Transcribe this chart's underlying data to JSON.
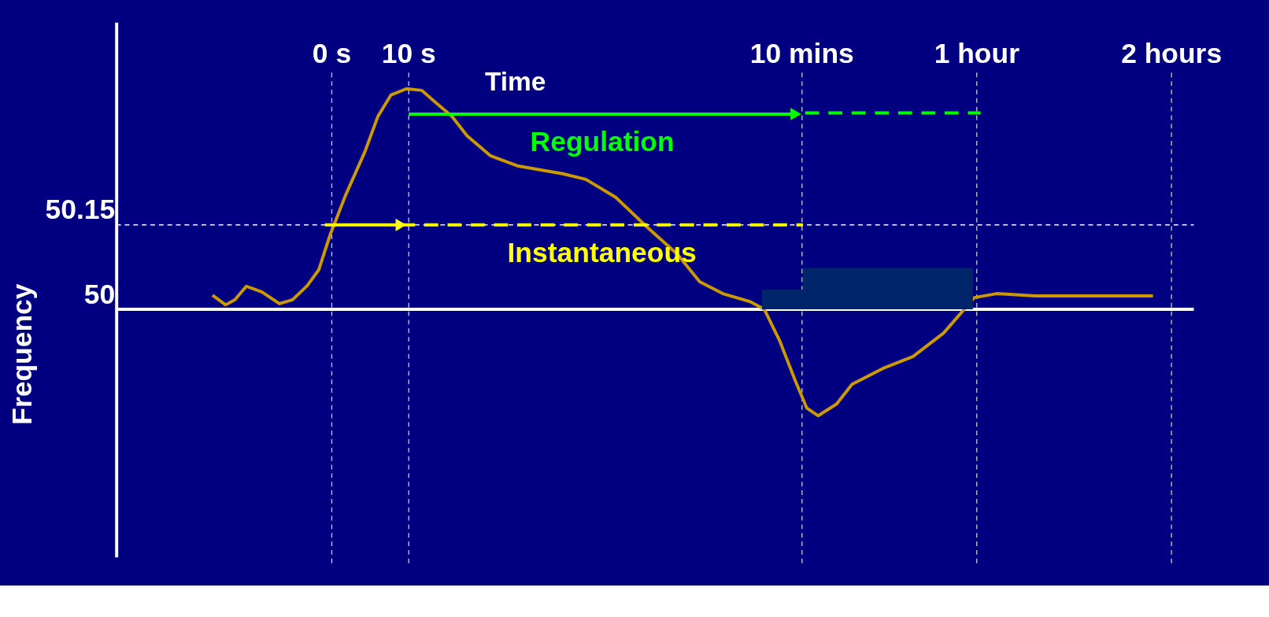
{
  "chart_data": {
    "type": "line",
    "xlabel": "Time",
    "ylabel": "Frequency",
    "xlim": [
      -28,
      112
    ],
    "ylim": [
      49.56,
      50.51
    ],
    "yticks": [
      50,
      50.15
    ],
    "tick_labels": "y",
    "ref_lines": [
      {
        "axis": "y",
        "value": 50.15,
        "color": "#ffffff",
        "line_style": "dashed"
      },
      {
        "axis": "y",
        "value": 50,
        "color": "#ffffff",
        "line_style": "solid"
      },
      {
        "axis": "x",
        "value": 0,
        "label": "0 s",
        "color": "#cccccc",
        "line_style": "dashed"
      },
      {
        "axis": "x",
        "value": 10,
        "label": "10 s",
        "color": "#cccccc",
        "line_style": "dashed"
      },
      {
        "axis": "x",
        "value": 61.1,
        "label": "10 mins",
        "color": "#cccccc",
        "line_style": "dashed"
      },
      {
        "axis": "x",
        "value": 83.8,
        "label": "1 hour",
        "color": "#cccccc",
        "line_style": "dashed"
      },
      {
        "axis": "x",
        "value": 109.1,
        "label": "2 hours",
        "color": "#cccccc",
        "line_style": "dashed"
      }
    ],
    "series": [
      {
        "color": "#cc9900",
        "line_style": "solid",
        "x": [
          -15.5,
          -13.8,
          -12.6,
          -11.1,
          -9.1,
          -6.8,
          -5.1,
          -3.2,
          -1.7,
          -0.2,
          1.8,
          4.3,
          6.0,
          7.7,
          9.7,
          11.7,
          13.2,
          15.6,
          17.6,
          20.6,
          24.1,
          30.0,
          33.0,
          36.9,
          40.9,
          44.9,
          47.8,
          50.8,
          54.3,
          56.2,
          58.2,
          60.2,
          61.7,
          63.2,
          65.6,
          67.6,
          71.6,
          75.5,
          79.5,
          83.5,
          86.4,
          91.4,
          99.3,
          106.7
        ],
        "values": [
          50.025,
          50.008,
          50.017,
          50.041,
          50.031,
          50.01,
          50.017,
          50.042,
          50.07,
          50.133,
          50.203,
          50.28,
          50.343,
          50.381,
          50.392,
          50.389,
          50.371,
          50.343,
          50.308,
          50.273,
          50.255,
          50.241,
          50.231,
          50.199,
          50.147,
          50.098,
          50.049,
          50.028,
          50.014,
          50.0,
          49.944,
          49.874,
          49.825,
          49.811,
          49.832,
          49.867,
          49.895,
          49.916,
          49.958,
          50.021,
          50.028,
          50.024,
          50.024,
          50.024
        ]
      },
      {
        "type": "area",
        "color": "#00256b",
        "x": [
          55.9,
          61.2,
          83.3
        ],
        "values": [
          50.035,
          50.074,
          50.074
        ]
      },
      {
        "type": "line",
        "color": "#ffff00",
        "line_style": "solid",
        "marker": "triangle",
        "x": [
          -0.9,
          9.0
        ],
        "values": [
          50.15,
          50.15
        ]
      },
      {
        "type": "line",
        "name": "Instantaneous",
        "color": "#ffff00",
        "line_style": "dashed",
        "x": [
          9.0,
          61.2
        ],
        "values": [
          50.15,
          50.15
        ]
      },
      {
        "type": "line",
        "name": "Regulation",
        "color": "#00ff00",
        "line_style": "solid",
        "marker": "triangle",
        "x": [
          10.0,
          60.3
        ],
        "values": [
          50.347,
          50.347
        ]
      },
      {
        "type": "line",
        "color": "#00ff00",
        "line_style": "dashed",
        "x": [
          61.5,
          84.3
        ],
        "values": [
          50.349,
          50.349
        ]
      }
    ]
  }
}
